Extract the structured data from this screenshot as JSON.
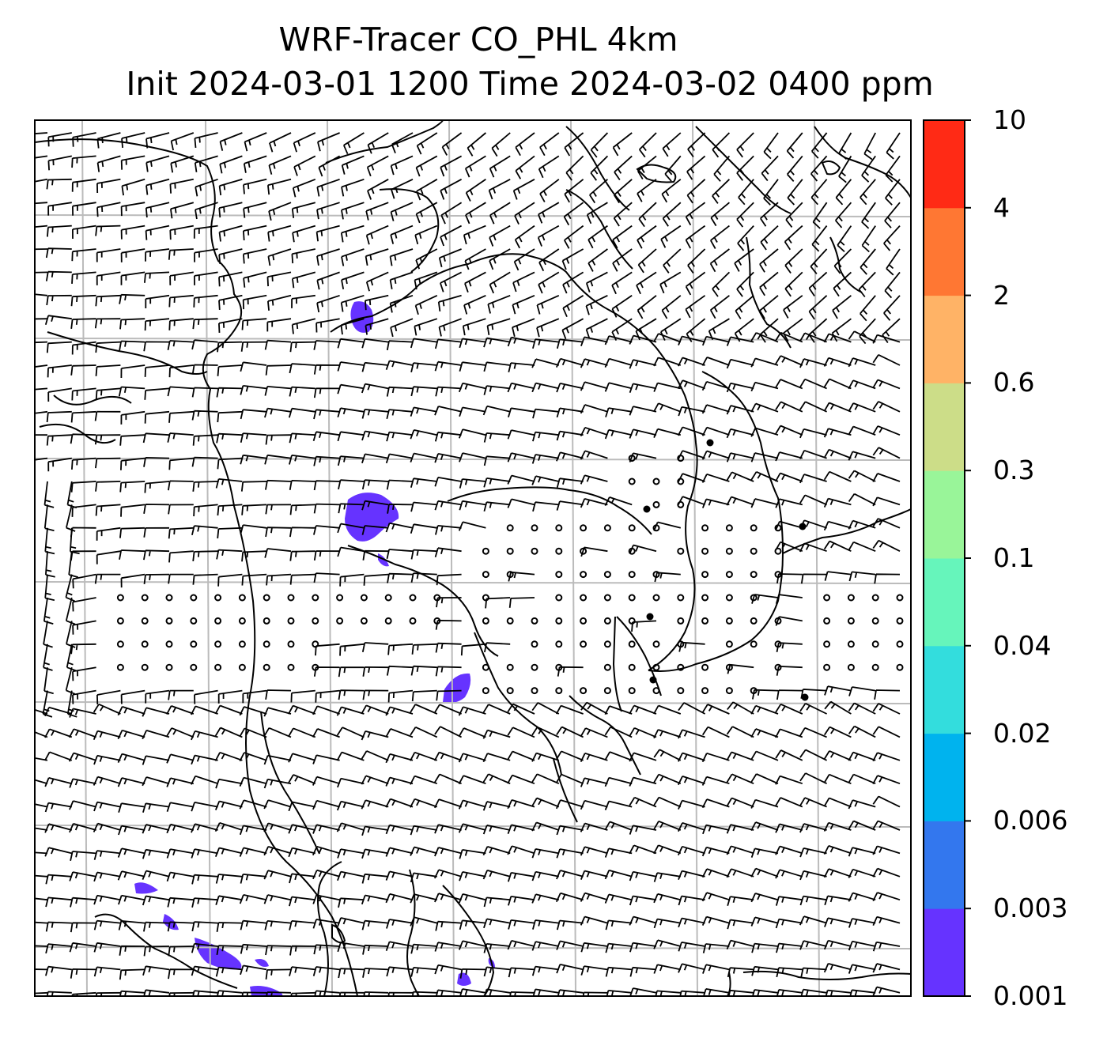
{
  "title": {
    "line1": "WRF-Tracer CO_PHL 4km",
    "line2": "Init 2024-03-01 1200 Time 2024-03-02 0400 ppm"
  },
  "colorbar": {
    "levels": [
      "0.001",
      "0.003",
      "0.006",
      "0.02",
      "0.04",
      "0.1",
      "0.3",
      "0.6",
      "2",
      "4",
      "10"
    ],
    "colors": [
      "#6633ff",
      "#3377ee",
      "#00b3ee",
      "#33dddd",
      "#66f5bb",
      "#99f599",
      "#ccdd88",
      "#ffb366",
      "#ff7733",
      "#ff2a15"
    ]
  },
  "map": {
    "tracer_color": "#6633ff",
    "gridline_color": "#bbbbbb",
    "coast_color": "#000000",
    "barb_color": "#000000",
    "grid_cols": 8,
    "grid_rows": 8,
    "calm_symbol": "circle",
    "gust_dot": "filled-circle"
  }
}
